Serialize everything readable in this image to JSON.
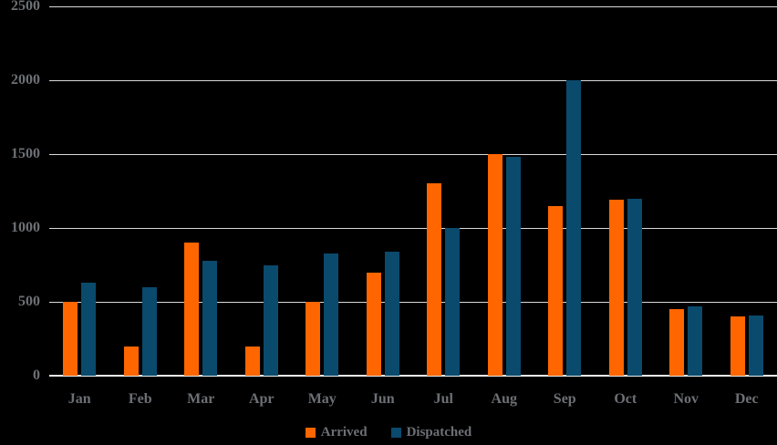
{
  "chart_data": {
    "type": "bar",
    "title": "",
    "xlabel": "",
    "ylabel": "",
    "categories": [
      "Jan",
      "Feb",
      "Mar",
      "Apr",
      "May",
      "Jun",
      "Jul",
      "Aug",
      "Sep",
      "Oct",
      "Nov",
      "Dec"
    ],
    "series": [
      {
        "name": "Arrived",
        "color": "#FF6600",
        "values": [
          500,
          200,
          900,
          200,
          500,
          700,
          1300,
          1500,
          1150,
          1190,
          450,
          400
        ]
      },
      {
        "name": "Dispatched",
        "color": "#0A4A6C",
        "values": [
          630,
          600,
          780,
          750,
          830,
          840,
          1000,
          1480,
          2000,
          1200,
          470,
          410
        ]
      }
    ],
    "ylim": [
      0,
      2500
    ],
    "yticks": [
      0,
      500,
      1000,
      1500,
      2000,
      2500
    ],
    "grid": true,
    "legend_position": "bottom",
    "colors": {
      "background": "#000000",
      "gridline": "#D9D9D9",
      "axis_line": "#EDEDED",
      "label_text": "#6C7075"
    }
  }
}
